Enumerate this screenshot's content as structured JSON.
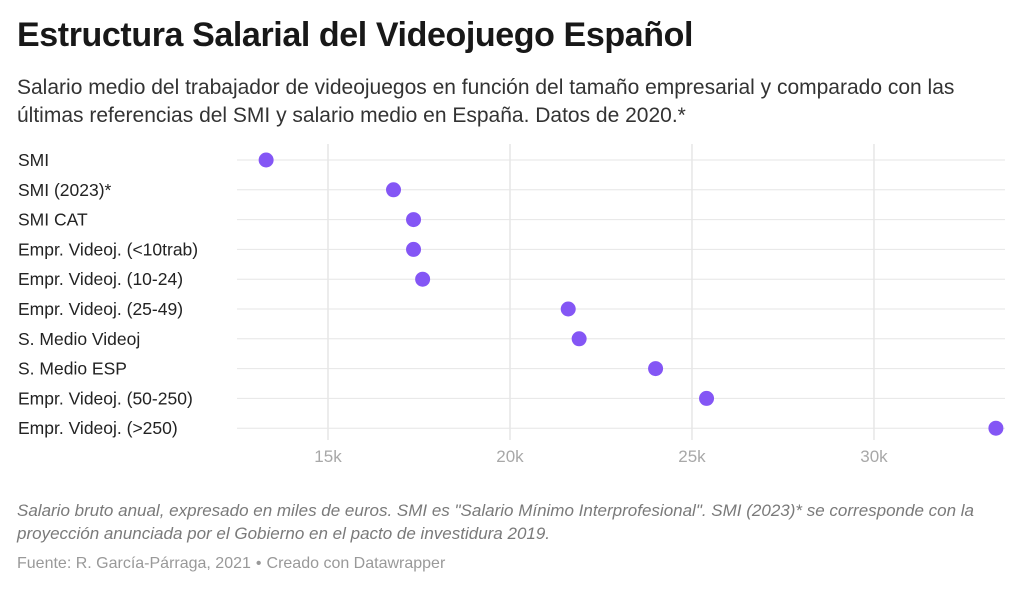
{
  "header": {
    "title": "Estructura Salarial del Videojuego Español",
    "subtitle": "Salario medio del trabajador de videojuegos en función del tamaño empresarial y comparado con las últimas referencias del SMI y salario medio en España. Datos de 2020.*"
  },
  "footer": {
    "note": "Salario bruto anual, expresado en miles de euros. SMI es \"Salario Mínimo Interprofesional\". SMI (2023)* se corresponde con la proyección anunciada por el Gobierno en el pacto de investidura 2019.",
    "source": "Fuente: R. García-Párraga, 2021",
    "separator": "•",
    "credit": "Creado con Datawrapper"
  },
  "colors": {
    "dot": "#8456f5",
    "grid": "#e6e6e6",
    "tick_label": "#a8a8a8",
    "row_label": "#222222"
  },
  "chart_data": {
    "type": "scatter",
    "categories": [
      "SMI",
      "SMI (2023)*",
      "SMI CAT",
      "Empr. Videoj. (<10trab)",
      "Empr. Videoj. (10-24)",
      "Empr. Videoj. (25-49)",
      "S. Medio Videoj",
      "S. Medio ESP",
      "Empr. Videoj. (50-250)",
      "Empr. Videoj. (>250)"
    ],
    "values": [
      13.3,
      16.8,
      17.35,
      17.35,
      17.6,
      21.6,
      21.9,
      24.0,
      25.4,
      33.35
    ],
    "xticks": [
      15,
      20,
      25,
      30
    ],
    "xtick_labels": [
      "15k",
      "20k",
      "25k",
      "30k"
    ],
    "xlim": [
      12.5,
      33.6
    ],
    "grid": true,
    "xlabel": "",
    "ylabel": ""
  }
}
